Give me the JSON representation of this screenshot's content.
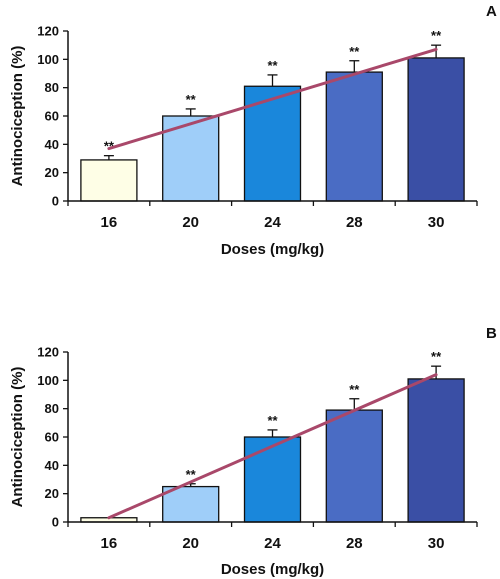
{
  "chart_data": [
    {
      "type": "bar",
      "panel": "A",
      "categories": [
        "16",
        "20",
        "24",
        "28",
        "30"
      ],
      "values": [
        29,
        60,
        81,
        91,
        101
      ],
      "errors": [
        3,
        5,
        8,
        8,
        9
      ],
      "significance": [
        "**",
        "**",
        "**",
        "**",
        "**"
      ],
      "trendline": {
        "from": {
          "category": "16",
          "y": 37
        },
        "to": {
          "category": "30",
          "y": 107
        }
      },
      "title": "",
      "xlabel": "Doses (mg/kg)",
      "ylabel": "Antinociception (%)",
      "ylim": [
        0,
        120
      ],
      "yticks": [
        0,
        20,
        40,
        60,
        80,
        100,
        120
      ],
      "grid": false,
      "legend": "none",
      "bar_colors": [
        "#fefee6",
        "#9fcef9",
        "#1a87db",
        "#4a6cc4",
        "#3a4fa5"
      ],
      "trend_color": "#a9486a"
    },
    {
      "type": "bar",
      "panel": "B",
      "categories": [
        "16",
        "20",
        "24",
        "28",
        "30"
      ],
      "values": [
        3,
        25,
        60,
        79,
        101
      ],
      "errors": [
        0,
        2,
        5,
        8,
        9
      ],
      "significance": [
        "",
        "**",
        "**",
        "**",
        "**"
      ],
      "trendline": {
        "from": {
          "category": "16",
          "y": 3
        },
        "to": {
          "category": "30",
          "y": 104
        }
      },
      "title": "",
      "xlabel": "Doses (mg/kg)",
      "ylabel": "Antinociception (%)",
      "ylim": [
        0,
        120
      ],
      "yticks": [
        0,
        20,
        40,
        60,
        80,
        100,
        120
      ],
      "grid": false,
      "legend": "none",
      "bar_colors": [
        "#fefee6",
        "#9fcef9",
        "#1a87db",
        "#4a6cc4",
        "#3a4fa5"
      ],
      "trend_color": "#a9486a"
    }
  ]
}
